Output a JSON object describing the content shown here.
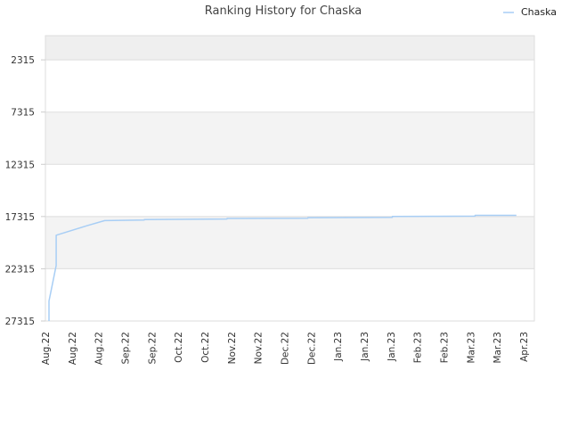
{
  "chart_data": {
    "type": "line",
    "title": "Ranking History for Chaska",
    "xlabel": "",
    "ylabel": "",
    "y_inverted": true,
    "ylim": [
      27315,
      0
    ],
    "yticks": [
      2315,
      7315,
      12315,
      17315,
      22315,
      27315
    ],
    "x_tick_labels": [
      "Aug.22",
      "Aug.22",
      "Aug.22",
      "Sep.22",
      "Sep.22",
      "Oct.22",
      "Oct.22",
      "Nov.22",
      "Nov.22",
      "Dec.22",
      "Dec.22",
      "Jan.23",
      "Jan.23",
      "Jan.23",
      "Feb.23",
      "Feb.23",
      "Mar.23",
      "Mar.23",
      "Apr.23"
    ],
    "legend": {
      "position": "top-right"
    },
    "grid": true,
    "band_colors": [
      "#efefef",
      "#ffffff",
      "#f3f3f3",
      "#ffffff",
      "#f3f3f3",
      "#ffffff"
    ],
    "series": [
      {
        "name": "Chaska",
        "color": "#a8cef5",
        "points": [
          {
            "x": "2022-08-03",
            "y": 27315
          },
          {
            "x": "2022-08-03",
            "y": 25400
          },
          {
            "x": "2022-08-07",
            "y": 22000
          },
          {
            "x": "2022-08-07",
            "y": 19100
          },
          {
            "x": "2022-08-24",
            "y": 18200
          },
          {
            "x": "2022-09-03",
            "y": 17700
          },
          {
            "x": "2022-09-25",
            "y": 17650
          },
          {
            "x": "2022-09-25",
            "y": 17600
          },
          {
            "x": "2022-11-10",
            "y": 17550
          },
          {
            "x": "2022-11-10",
            "y": 17500
          },
          {
            "x": "2022-12-25",
            "y": 17480
          },
          {
            "x": "2022-12-25",
            "y": 17420
          },
          {
            "x": "2023-02-10",
            "y": 17400
          },
          {
            "x": "2023-02-10",
            "y": 17300
          },
          {
            "x": "2023-03-28",
            "y": 17280
          },
          {
            "x": "2023-03-28",
            "y": 17200
          },
          {
            "x": "2023-04-20",
            "y": 17200
          }
        ]
      }
    ]
  }
}
